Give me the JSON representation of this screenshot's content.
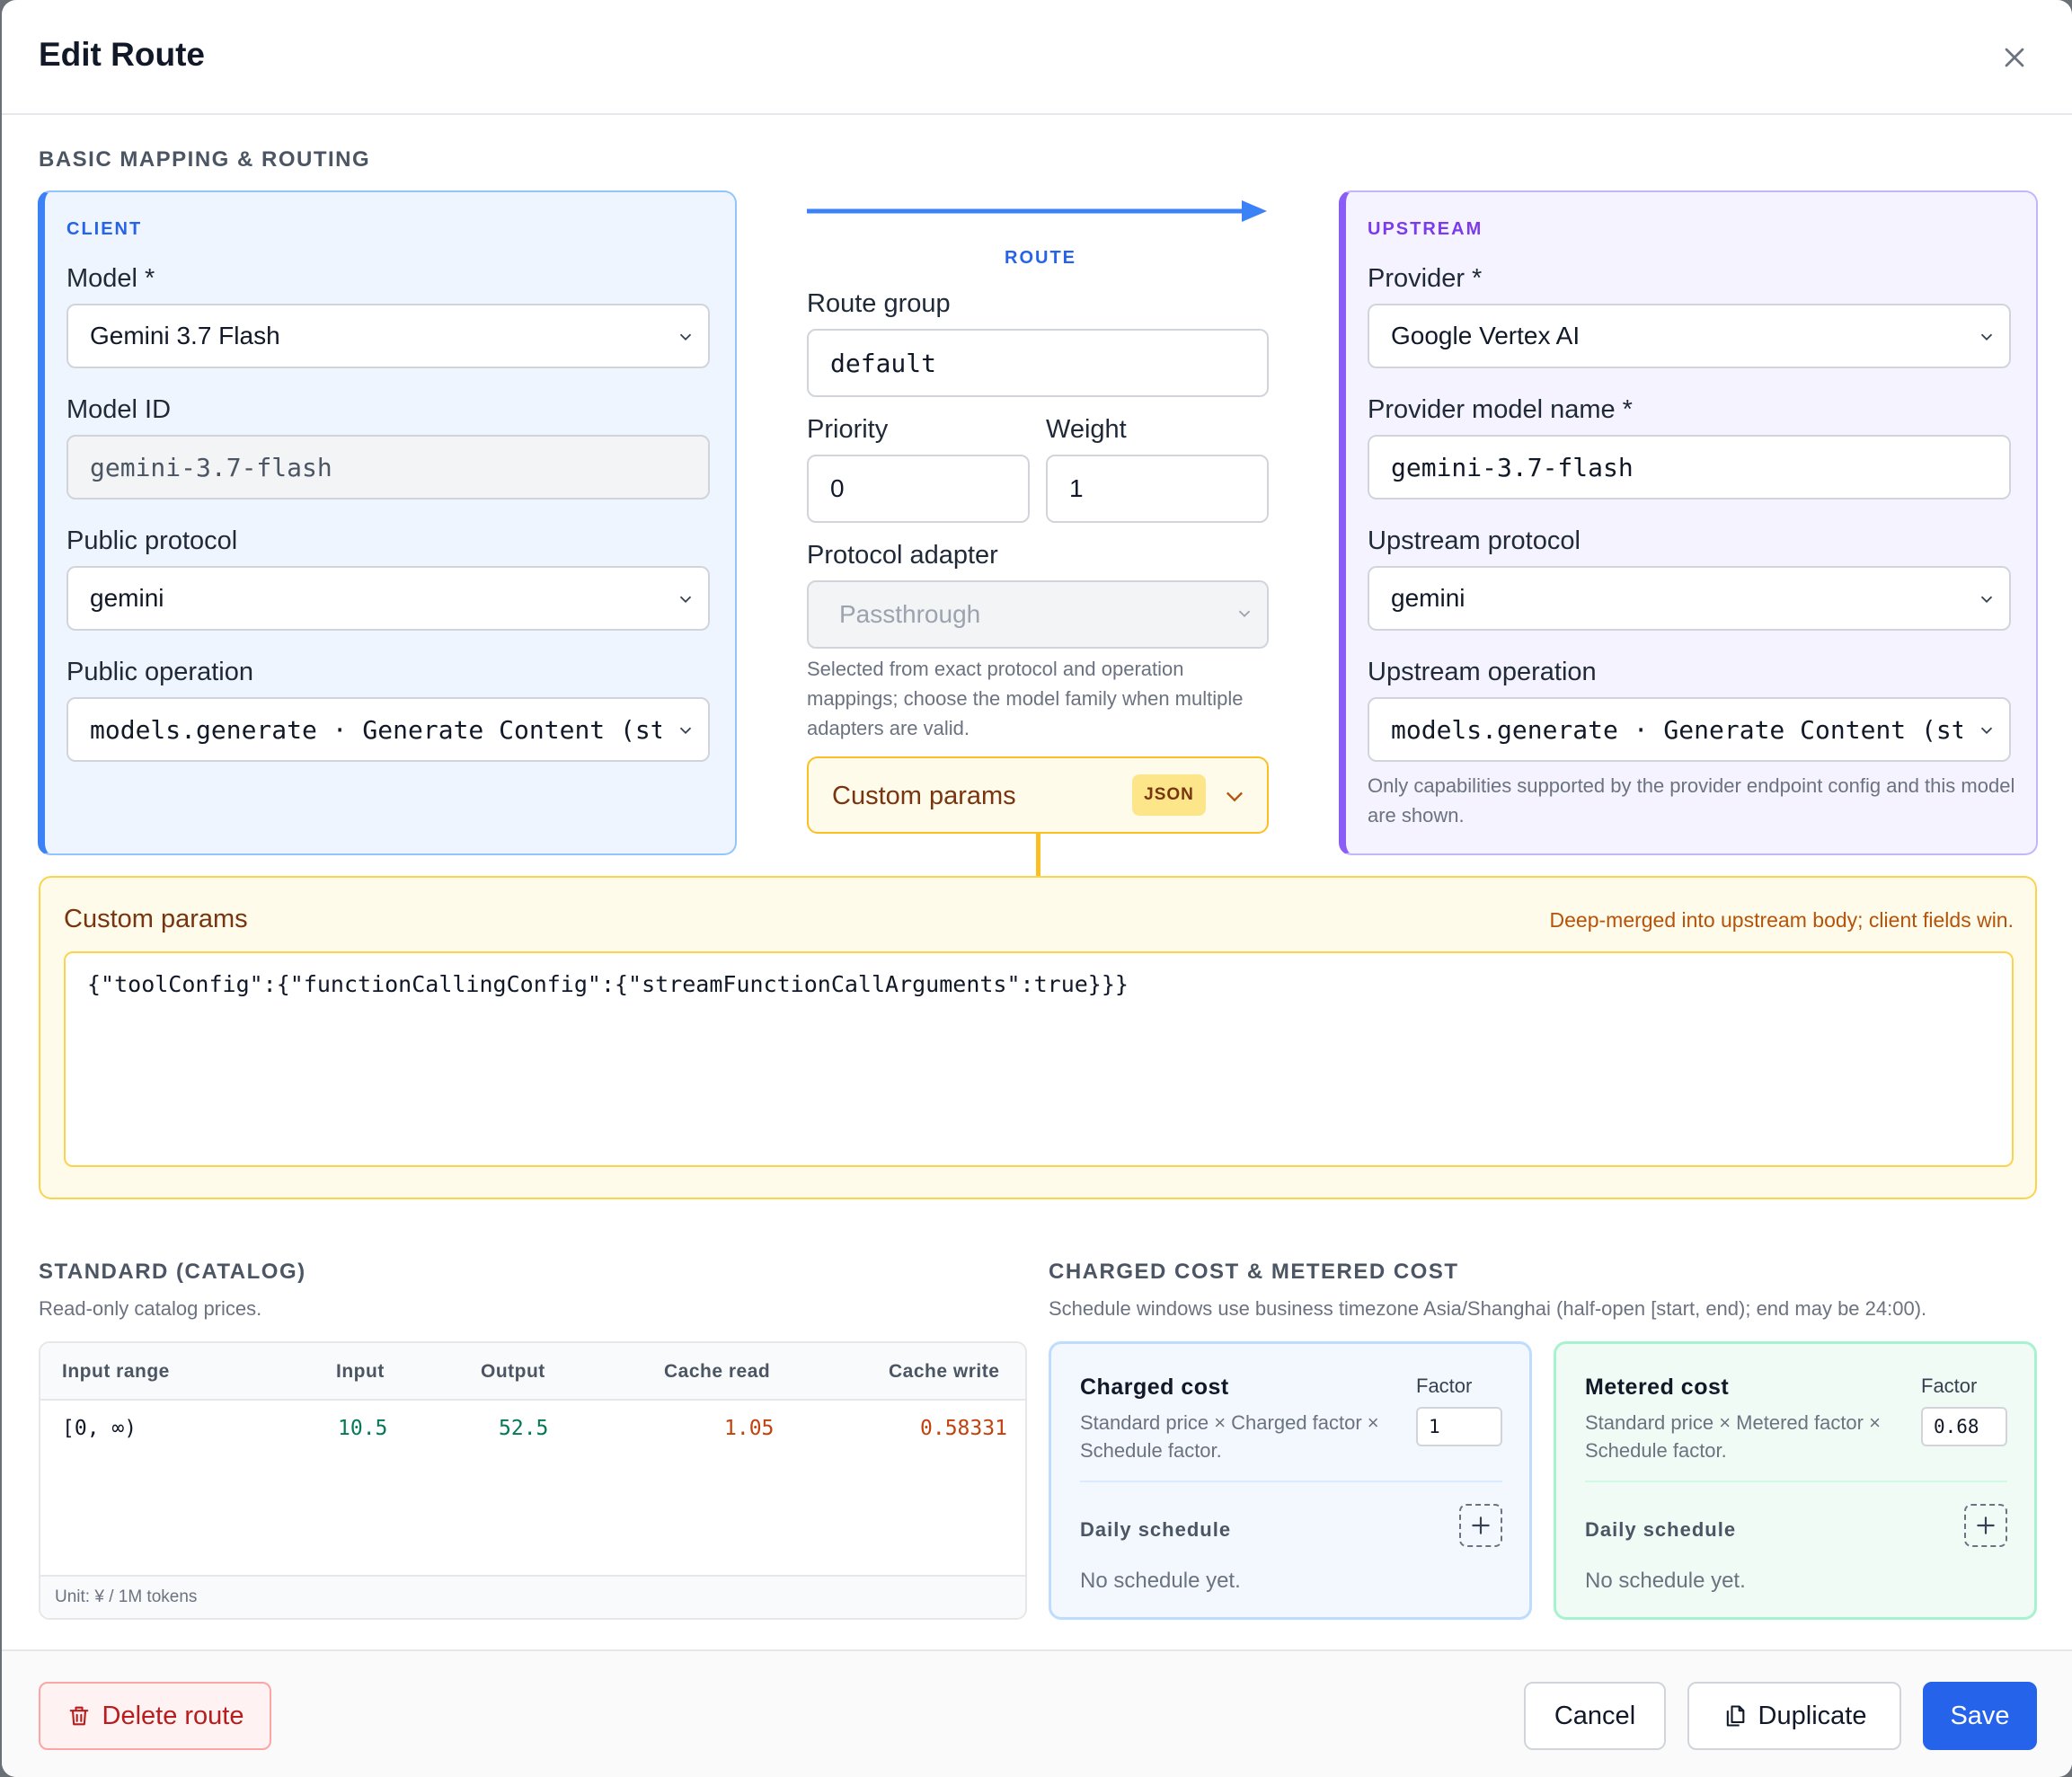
{
  "dialog": {
    "title": "Edit Route"
  },
  "basic_section": {
    "label": "BASIC MAPPING & ROUTING"
  },
  "client": {
    "tag": "CLIENT",
    "model_label": "Model *",
    "model_value": "Gemini 3.7 Flash",
    "model_id_label": "Model ID",
    "model_id_value": "gemini-3.7-flash",
    "public_protocol_label": "Public protocol",
    "public_protocol_value": "gemini",
    "public_operation_label": "Public operation",
    "public_operation_value": "models.generate · Generate Content (streaming)"
  },
  "route": {
    "tag": "ROUTE",
    "group_label": "Route group",
    "group_value": "default",
    "priority_label": "Priority",
    "priority_value": "0",
    "weight_label": "Weight",
    "weight_value": "1",
    "adapter_label": "Protocol adapter",
    "adapter_value": "Passthrough",
    "adapter_hint": "Selected from exact protocol and operation mappings; choose the model family when multiple adapters are valid.",
    "custom_params_label": "Custom params",
    "json_badge": "JSON",
    "arrow_color": "#3b82f6"
  },
  "upstream": {
    "tag": "UPSTREAM",
    "provider_label": "Provider *",
    "provider_value": "Google Vertex AI",
    "model_name_label": "Provider model name *",
    "model_name_value": "gemini-3.7-flash",
    "protocol_label": "Upstream protocol",
    "protocol_value": "gemini",
    "operation_label": "Upstream operation",
    "operation_value": "models.generate · Generate Content (streaming)",
    "hint": "Only capabilities supported by the provider endpoint config and this model are shown."
  },
  "custom_params": {
    "title": "Custom params",
    "note": "Deep-merged into upstream body; client fields win.",
    "value": "{\"toolConfig\":{\"functionCallingConfig\":{\"streamFunctionCallArguments\":true}}}"
  },
  "standard": {
    "label": "STANDARD (CATALOG)",
    "subtitle": "Read-only catalog prices.",
    "columns": [
      "Input range",
      "Input",
      "Output",
      "Cache read",
      "Cache write"
    ],
    "rows": [
      {
        "range": "[0, ∞)",
        "input": "10.5",
        "output": "52.5",
        "cache_read": "1.05",
        "cache_write": "0.58331"
      }
    ],
    "unit": "Unit: ¥ / 1M tokens"
  },
  "costs": {
    "label": "CHARGED COST & METERED COST",
    "subtitle": "Schedule windows use business timezone Asia/Shanghai (half-open [start, end); end may be 24:00).",
    "charged": {
      "title": "Charged cost",
      "desc": "Standard price × Charged factor × Schedule factor.",
      "factor_label": "Factor",
      "factor_value": "1",
      "schedule_label": "Daily schedule",
      "empty": "No schedule yet."
    },
    "metered": {
      "title": "Metered cost",
      "desc": "Standard price × Metered factor × Schedule factor.",
      "factor_label": "Factor",
      "factor_value": "0.68",
      "schedule_label": "Daily schedule",
      "empty": "No schedule yet."
    }
  },
  "footer": {
    "delete_label": "Delete route",
    "cancel_label": "Cancel",
    "duplicate_label": "Duplicate",
    "save_label": "Save"
  },
  "colors": {
    "client_accent": "#3b82f6",
    "upstream_accent": "#8b5cf6",
    "custom_params_accent": "#fbbf24",
    "save_button": "#2563eb",
    "delete_button": "#b91c1c"
  },
  "icons": [
    "close-icon",
    "chevron-down-icon",
    "trash-icon",
    "copy-icon",
    "plus-icon",
    "resize-handle-icon"
  ]
}
